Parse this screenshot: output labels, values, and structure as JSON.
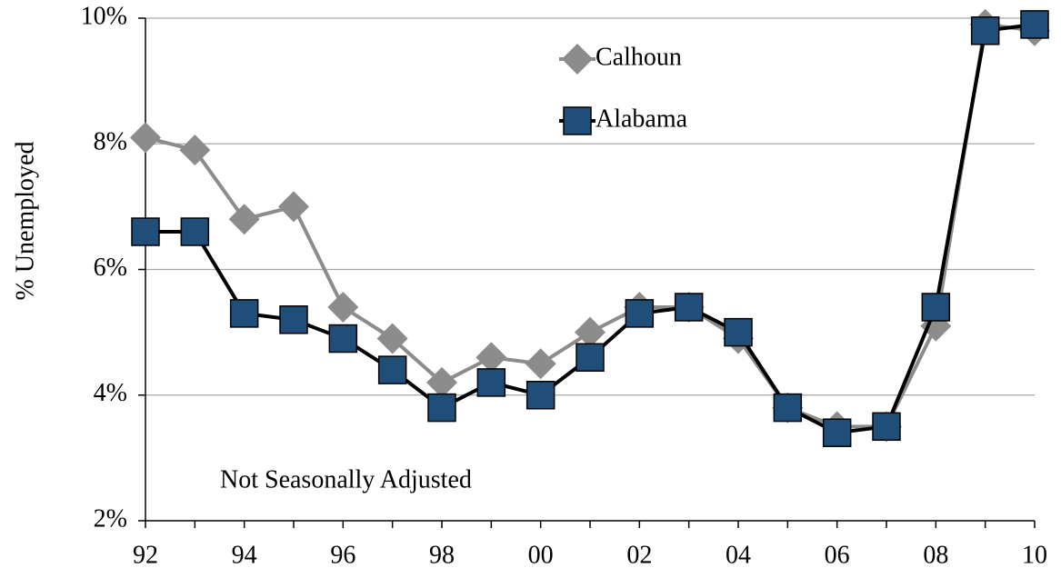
{
  "chart_data": {
    "type": "line",
    "y_label": "% Unemployed",
    "annotation": "Not Seasonally Adjusted",
    "categories": [
      "92",
      null,
      "94",
      null,
      "96",
      null,
      "98",
      null,
      "00",
      null,
      "02",
      null,
      "04",
      null,
      "06",
      null,
      "08",
      null,
      "10"
    ],
    "series": [
      {
        "name": "Calhoun",
        "color": "#8c8c8c",
        "marker": "diamond",
        "values": [
          8.1,
          7.9,
          6.8,
          7.0,
          5.4,
          4.9,
          4.2,
          4.6,
          4.5,
          5.0,
          5.4,
          5.4,
          4.9,
          3.8,
          3.5,
          3.5,
          5.1,
          9.9,
          9.8
        ]
      },
      {
        "name": "Alabama",
        "color": "#000000",
        "marker_color": "#1f4e79",
        "marker": "square",
        "values": [
          6.6,
          6.6,
          5.3,
          5.2,
          4.9,
          4.4,
          3.8,
          4.2,
          4.0,
          4.6,
          5.3,
          5.4,
          5.0,
          3.8,
          3.4,
          3.5,
          5.4,
          9.8,
          9.9
        ]
      }
    ],
    "ylim": [
      2,
      10
    ],
    "yticks": [
      {
        "value": 2,
        "label": "2%"
      },
      {
        "value": 4,
        "label": "4%"
      },
      {
        "value": 6,
        "label": "6%"
      },
      {
        "value": 8,
        "label": "8%"
      },
      {
        "value": 10,
        "label": "10%"
      }
    ],
    "grid": true
  }
}
